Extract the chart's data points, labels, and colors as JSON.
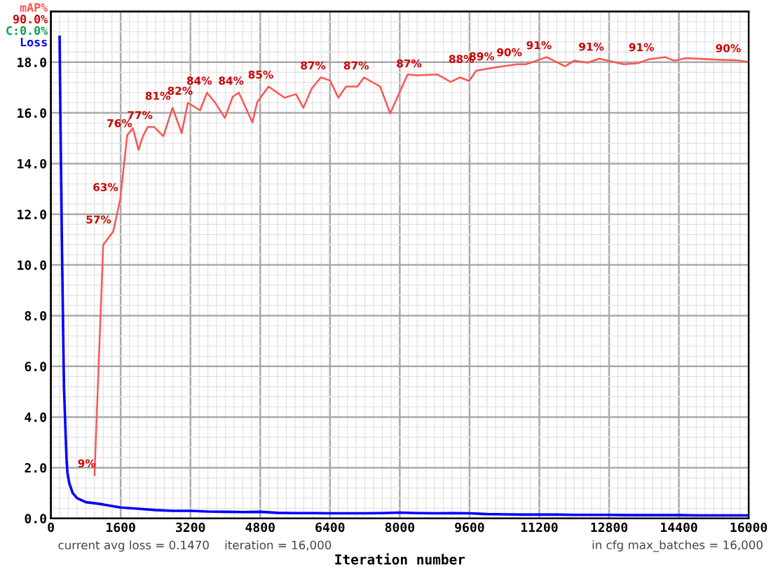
{
  "chart_data": {
    "type": "line",
    "xlabel": "Iteration number",
    "xlim": [
      0,
      16000
    ],
    "xticks": [
      0,
      1600,
      3200,
      4800,
      6400,
      8000,
      9600,
      11200,
      12800,
      14400,
      16000
    ],
    "ylim": [
      0,
      20
    ],
    "yticks": [
      {
        "value": 0,
        "label": "0.0"
      },
      {
        "value": 2,
        "label": "2.0"
      },
      {
        "value": 4,
        "label": "4.0"
      },
      {
        "value": 6,
        "label": "6.0"
      },
      {
        "value": 8,
        "label": "8.0"
      },
      {
        "value": 10,
        "label": "10.0"
      },
      {
        "value": 12,
        "label": "12.0"
      },
      {
        "value": 14,
        "label": "14.0"
      },
      {
        "value": 16,
        "label": "16.0"
      },
      {
        "value": 18,
        "label": "18.0"
      }
    ],
    "y2lim": [
      0,
      100
    ],
    "grid": true,
    "legend": "top left",
    "marker": "none",
    "line_style": "solid",
    "series": [
      {
        "name": "mAP%",
        "color": "#ff5555",
        "axis": "y2",
        "x": [
          1000,
          1200,
          1430,
          1590,
          1750,
          1880,
          2010,
          2110,
          2220,
          2370,
          2580,
          2790,
          3000,
          3140,
          3420,
          3580,
          3760,
          3990,
          4170,
          4310,
          4460,
          4620,
          4730,
          4990,
          5360,
          5620,
          5790,
          5980,
          6190,
          6400,
          6590,
          6770,
          7030,
          7180,
          7550,
          7780,
          8180,
          8390,
          8860,
          9170,
          9380,
          9590,
          9750,
          10060,
          10380,
          10690,
          10900,
          11370,
          11790,
          12000,
          12310,
          12570,
          13140,
          13460,
          13720,
          14090,
          14300,
          14560,
          15290,
          15710,
          15970
        ],
        "values": [
          8.5,
          54.0,
          56.6,
          63.0,
          75.6,
          77.0,
          72.7,
          75.4,
          77.2,
          77.2,
          75.4,
          81.0,
          76.0,
          82.0,
          80.5,
          84.0,
          82.1,
          79.0,
          83.2,
          84.0,
          81.2,
          78.1,
          82.1,
          85.2,
          83.0,
          83.7,
          81.0,
          84.8,
          87.0,
          86.4,
          83.0,
          85.2,
          85.2,
          87.0,
          85.2,
          79.9,
          87.6,
          87.4,
          87.6,
          86.1,
          87.0,
          86.3,
          88.3,
          88.8,
          89.2,
          89.6,
          89.6,
          91.0,
          89.2,
          90.3,
          89.9,
          90.7,
          89.6,
          89.8,
          90.6,
          91.0,
          90.3,
          90.8,
          90.5,
          90.4,
          90.1
        ],
        "value_labels": [
          "9%",
          null,
          "57%",
          "63%",
          "76%",
          null,
          null,
          null,
          "77%",
          null,
          null,
          "81%",
          null,
          "82%",
          null,
          "84%",
          null,
          null,
          null,
          "84%",
          null,
          null,
          null,
          "85%",
          null,
          null,
          null,
          null,
          "87%",
          null,
          null,
          null,
          null,
          "87%",
          null,
          null,
          null,
          "87%",
          null,
          null,
          null,
          null,
          "88%",
          "89%",
          null,
          "90%",
          null,
          "91%",
          null,
          null,
          null,
          "91%",
          null,
          null,
          "91%",
          null,
          null,
          null,
          null,
          "90%",
          null
        ]
      },
      {
        "name": "Loss",
        "color": "#0000ff",
        "x": [
          200,
          210,
          220,
          230,
          240,
          250,
          260,
          270,
          280,
          290,
          300,
          320,
          340,
          360,
          380,
          420,
          500,
          600,
          800,
          1000,
          1200,
          1600,
          2000,
          2400,
          2800,
          3200,
          3600,
          4000,
          4400,
          4800,
          5200,
          5600,
          6000,
          6400,
          6800,
          7200,
          7600,
          8000,
          8400,
          8800,
          9200,
          9600,
          10000,
          10400,
          10800,
          11200,
          11600,
          12000,
          12400,
          12800,
          13200,
          13600,
          14000,
          14400,
          14800,
          15200,
          15600,
          16000
        ],
        "values": [
          19.0,
          17.2,
          15.6,
          14.2,
          12.8,
          11.3,
          10.0,
          8.8,
          7.5,
          6.3,
          5.2,
          4.2,
          3.2,
          2.3,
          1.8,
          1.4,
          1.0,
          0.8,
          0.64,
          0.6,
          0.55,
          0.43,
          0.38,
          0.33,
          0.3,
          0.3,
          0.27,
          0.26,
          0.25,
          0.26,
          0.22,
          0.21,
          0.21,
          0.2,
          0.2,
          0.2,
          0.21,
          0.23,
          0.21,
          0.2,
          0.21,
          0.2,
          0.17,
          0.16,
          0.15,
          0.15,
          0.15,
          0.14,
          0.14,
          0.14,
          0.13,
          0.13,
          0.13,
          0.13,
          0.12,
          0.12,
          0.12,
          0.12
        ]
      }
    ],
    "annotations": [
      "90.0%",
      "C:0.0%",
      "current avg loss = 0.1470    iteration = 16,000",
      "in cfg max_batches = 16,000"
    ]
  }
}
